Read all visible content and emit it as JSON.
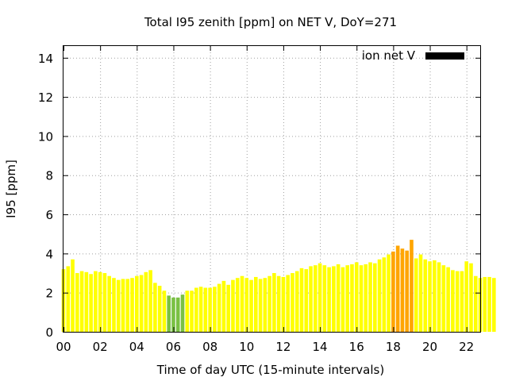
{
  "chart_data": {
    "type": "bar",
    "title": "Total I95 zenith [ppm] on NET V, DoY=271",
    "xlabel": "Time of day UTC (15-minute intervals)",
    "ylabel": "I95 [ppm]",
    "ylim": [
      0,
      14.6
    ],
    "xlim": [
      0,
      22.75
    ],
    "yticks": [
      0,
      2,
      4,
      6,
      8,
      10,
      12,
      14
    ],
    "xticks": [
      0,
      2,
      4,
      6,
      8,
      10,
      12,
      14,
      16,
      18,
      20,
      22
    ],
    "xtick_labels": [
      "00",
      "02",
      "04",
      "06",
      "08",
      "10",
      "12",
      "14",
      "16",
      "18",
      "20",
      "22"
    ],
    "grid": true,
    "legend": {
      "label": "ion net V",
      "color": "#000000",
      "placement": "top-right"
    },
    "bar_width_hours": 0.2,
    "colors": {
      "low": "#ffff00",
      "mid": "#7ac143",
      "high": "#ffa500"
    },
    "x_start_hours": 0,
    "x_step_hours": 0.25,
    "values": [
      3.2,
      3.35,
      3.7,
      3.0,
      3.1,
      3.05,
      2.95,
      3.1,
      3.05,
      3.0,
      2.85,
      2.75,
      2.65,
      2.7,
      2.7,
      2.75,
      2.85,
      2.9,
      3.05,
      3.15,
      2.5,
      2.35,
      2.1,
      1.85,
      1.75,
      1.75,
      1.9,
      2.1,
      2.1,
      2.25,
      2.3,
      2.25,
      2.25,
      2.3,
      2.45,
      2.6,
      2.4,
      2.65,
      2.75,
      2.85,
      2.75,
      2.65,
      2.8,
      2.7,
      2.75,
      2.85,
      3.0,
      2.85,
      2.8,
      2.9,
      3.0,
      3.1,
      3.25,
      3.2,
      3.35,
      3.4,
      3.5,
      3.4,
      3.3,
      3.35,
      3.45,
      3.3,
      3.4,
      3.45,
      3.55,
      3.4,
      3.45,
      3.55,
      3.5,
      3.7,
      3.8,
      3.95,
      4.1,
      4.4,
      4.25,
      4.15,
      4.7,
      3.75,
      3.95,
      3.7,
      3.6,
      3.65,
      3.55,
      3.4,
      3.3,
      3.15,
      3.1,
      3.1,
      3.6,
      3.5,
      2.85,
      2.75,
      2.8,
      2.8,
      2.75
    ],
    "color_index": [
      0,
      0,
      0,
      0,
      0,
      0,
      0,
      0,
      0,
      0,
      0,
      0,
      0,
      0,
      0,
      0,
      0,
      0,
      0,
      0,
      0,
      0,
      0,
      1,
      1,
      1,
      1,
      0,
      0,
      0,
      0,
      0,
      0,
      0,
      0,
      0,
      0,
      0,
      0,
      0,
      0,
      0,
      0,
      0,
      0,
      0,
      0,
      0,
      0,
      0,
      0,
      0,
      0,
      0,
      0,
      0,
      0,
      0,
      0,
      0,
      0,
      0,
      0,
      0,
      0,
      0,
      0,
      0,
      0,
      0,
      0,
      0,
      2,
      2,
      2,
      2,
      2,
      0,
      0,
      0,
      0,
      0,
      0,
      0,
      0,
      0,
      0,
      0,
      0,
      0,
      0,
      0,
      0,
      0,
      0
    ]
  }
}
